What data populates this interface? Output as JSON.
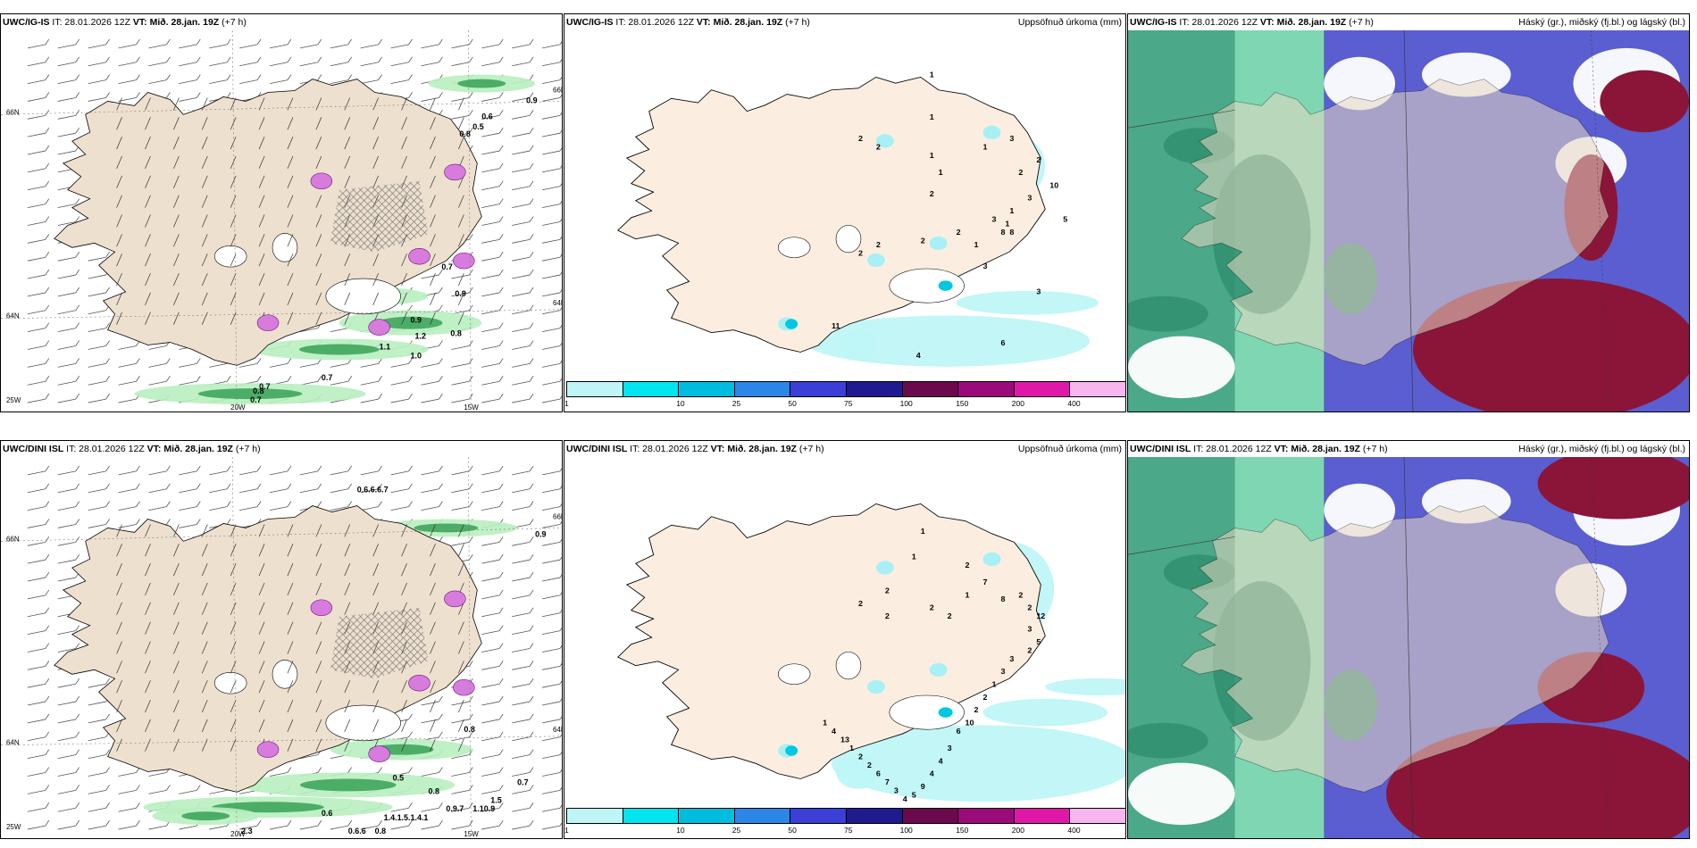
{
  "panels": [
    {
      "model": "UWC/IG-IS",
      "it": "IT: 28.01.2026 12Z",
      "vt_label": "VT:",
      "vt": "Mið. 28.jan. 19Z",
      "lead": "(+7 h)",
      "right": "",
      "kind": "wind",
      "values": [
        "0.9",
        "0.6",
        "0.5",
        "0.8",
        "0.7",
        "0.9",
        "0.9",
        "0.8",
        "1.2",
        "1.1",
        "1.0",
        "0.7",
        "0.7",
        "0.8",
        "0.7"
      ],
      "axis": {
        "lat_top": "66N",
        "lat_mid": "64N",
        "lon_left": "20W",
        "lon_right": "15W",
        "lat_bot": "25W",
        "lat_right": "66N",
        "lat_right2": "64N"
      }
    },
    {
      "model": "UWC/IG-IS",
      "it": "IT: 28.01.2026 12Z",
      "vt_label": "VT:",
      "vt": "Mið. 28.jan. 19Z",
      "lead": "(+7 h)",
      "right": "Uppsöfnuð úrkoma (mm)",
      "kind": "precip",
      "values": [
        "1",
        "1",
        "2",
        "2",
        "1",
        "1",
        "2",
        "1",
        "3",
        "2",
        "2",
        "10",
        "3",
        "1",
        "3",
        "8",
        "2",
        "1",
        "2",
        "2",
        "2",
        "5",
        "8",
        "3",
        "1",
        "3",
        "6",
        "4",
        "11"
      ]
    },
    {
      "model": "UWC/IG-IS",
      "it": "IT: 28.01.2026 12Z",
      "vt_label": "VT:",
      "vt": "Mið. 28.jan. 19Z",
      "lead": "(+7 h)",
      "right": "Háský (gr.), miðský (fj.bl.) og lágský (bl.)",
      "kind": "cloud"
    },
    {
      "model": "UWC/DINI ISL",
      "it": "IT: 28.01.2026 12Z",
      "vt_label": "VT:",
      "vt": "Mið. 28.jan. 19Z",
      "lead": "(+7 h)",
      "right": "",
      "kind": "wind",
      "values": [
        "0.6.6.6.7",
        "0.9",
        "0.8",
        "0.5",
        "0.8",
        "0.6",
        "0.8",
        "0.9.7",
        "1.10.9",
        "1.5",
        "0.7",
        "1.4.1.5.1.4.1",
        "0.6.6",
        "2.3"
      ],
      "axis": {
        "lat_top": "66N",
        "lat_mid": "64N",
        "lon_left": "20W",
        "lon_right": "15W",
        "lat_bot": "25W",
        "lat_right": "66N",
        "lat_right2": "64N"
      }
    },
    {
      "model": "UWC/DINI ISL",
      "it": "IT: 28.01.2026 12Z",
      "vt_label": "VT:",
      "vt": "Mið. 28.jan. 19Z",
      "lead": "(+7 h)",
      "right": "Uppsöfnuð úrkoma (mm)",
      "kind": "precip",
      "values": [
        "1",
        "1",
        "2",
        "2",
        "2",
        "2",
        "2",
        "1",
        "2",
        "7",
        "8",
        "2",
        "2",
        "12",
        "3",
        "5",
        "2",
        "3",
        "3",
        "1",
        "2",
        "2",
        "10",
        "6",
        "3",
        "4",
        "4",
        "9",
        "5",
        "4",
        "3",
        "7",
        "6",
        "2",
        "2",
        "1",
        "13",
        "4",
        "1"
      ]
    },
    {
      "model": "UWC/DINI ISL",
      "it": "IT: 28.01.2026 12Z",
      "vt_label": "VT:",
      "vt": "Mið. 28.jan. 19Z",
      "lead": "(+7 h)",
      "right": "Háský (gr.), miðský (fj.bl.) og lágský (bl.)",
      "kind": "cloud"
    }
  ],
  "colorbar": {
    "labels": [
      "1",
      "10",
      "25",
      "50",
      "75",
      "100",
      "150",
      "200",
      "400"
    ],
    "colors": [
      "#bff5f7",
      "#00e5ee",
      "#00bde0",
      "#2b86e6",
      "#3b3fd6",
      "#1f1a8f",
      "#6a0a4c",
      "#9b0a7a",
      "#e018a8",
      "#f7b6ee"
    ]
  }
}
